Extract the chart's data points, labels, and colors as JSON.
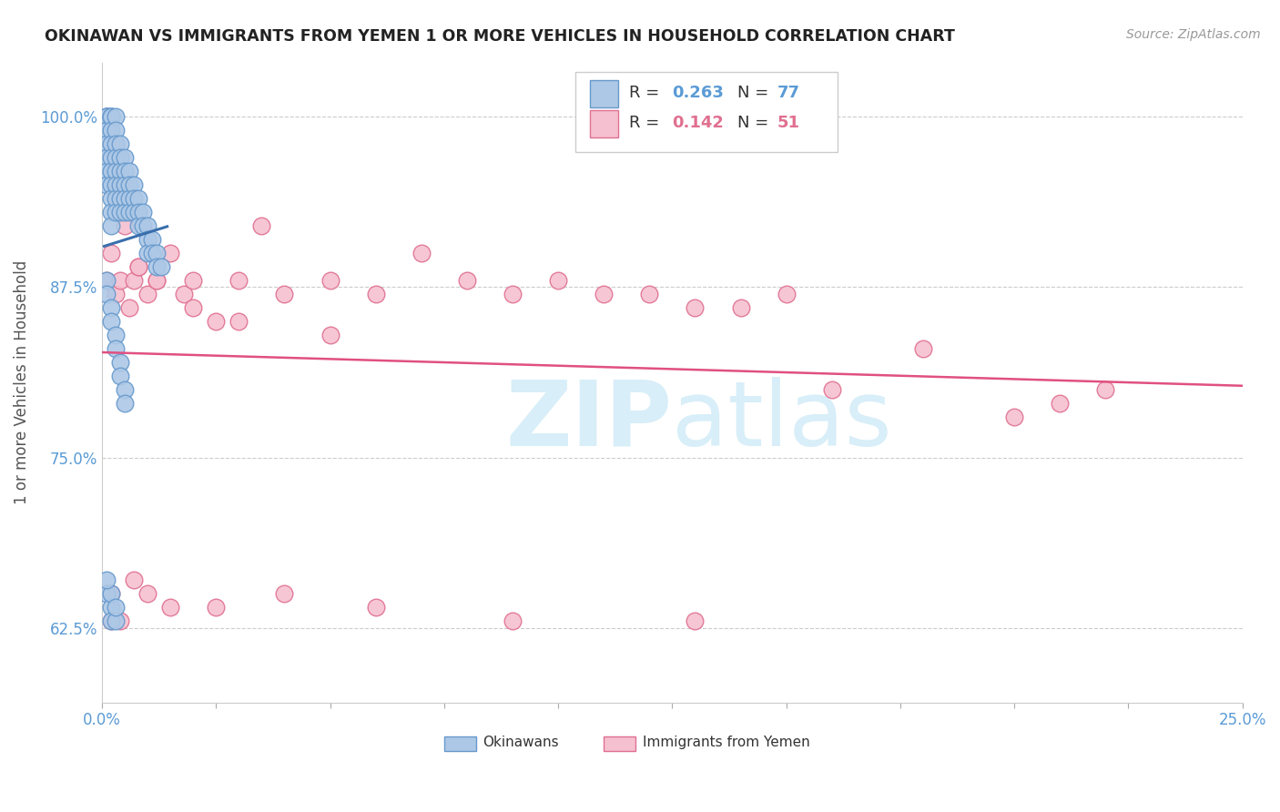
{
  "title": "OKINAWAN VS IMMIGRANTS FROM YEMEN 1 OR MORE VEHICLES IN HOUSEHOLD CORRELATION CHART",
  "ylabel": "1 or more Vehicles in Household",
  "source": "Source: ZipAtlas.com",
  "xlim": [
    0.0,
    0.25
  ],
  "ylim": [
    0.57,
    1.04
  ],
  "yticks": [
    0.625,
    0.75,
    0.875,
    1.0
  ],
  "ytick_labels": [
    "62.5%",
    "75.0%",
    "87.5%",
    "100.0%"
  ],
  "xtick_positions": [
    0.0,
    0.025,
    0.05,
    0.075,
    0.1,
    0.125,
    0.15,
    0.175,
    0.2,
    0.225,
    0.25
  ],
  "xtick_labels": [
    "0.0%",
    "",
    "",
    "",
    "",
    "",
    "",
    "",
    "",
    "",
    "25.0%"
  ],
  "grid_color": "#cccccc",
  "background_color": "#ffffff",
  "okinawan_color": "#adc8e6",
  "okinawan_edge_color": "#6699cc",
  "yemen_color": "#f5c0d0",
  "yemen_edge_color": "#e07090",
  "okinawan_line_color": "#3a6fad",
  "yemen_line_color": "#e05080",
  "tick_color": "#5b9bd5",
  "watermark_color": "#d8eef8",
  "okinawan_R": 0.263,
  "okinawan_N": 77,
  "yemen_R": 0.142,
  "yemen_N": 51,
  "ok_x": [
    0.001,
    0.001,
    0.001,
    0.001,
    0.001,
    0.001,
    0.001,
    0.001,
    0.001,
    0.001,
    0.002,
    0.002,
    0.002,
    0.002,
    0.002,
    0.002,
    0.002,
    0.002,
    0.002,
    0.002,
    0.002,
    0.003,
    0.003,
    0.003,
    0.003,
    0.003,
    0.003,
    0.003,
    0.003,
    0.004,
    0.004,
    0.004,
    0.004,
    0.004,
    0.004,
    0.005,
    0.005,
    0.005,
    0.005,
    0.005,
    0.006,
    0.006,
    0.006,
    0.006,
    0.007,
    0.007,
    0.007,
    0.008,
    0.008,
    0.008,
    0.009,
    0.009,
    0.01,
    0.01,
    0.01,
    0.011,
    0.011,
    0.012,
    0.012,
    0.013,
    0.001,
    0.001,
    0.002,
    0.002,
    0.003,
    0.003,
    0.004,
    0.004,
    0.005,
    0.005,
    0.001,
    0.002,
    0.002,
    0.003,
    0.002,
    0.001,
    0.003
  ],
  "ok_y": [
    1.0,
    1.0,
    1.0,
    1.0,
    0.99,
    0.99,
    0.98,
    0.97,
    0.96,
    0.95,
    1.0,
    1.0,
    1.0,
    0.99,
    0.98,
    0.97,
    0.96,
    0.95,
    0.94,
    0.93,
    0.92,
    1.0,
    0.99,
    0.98,
    0.97,
    0.96,
    0.95,
    0.94,
    0.93,
    0.98,
    0.97,
    0.96,
    0.95,
    0.94,
    0.93,
    0.97,
    0.96,
    0.95,
    0.94,
    0.93,
    0.96,
    0.95,
    0.94,
    0.93,
    0.95,
    0.94,
    0.93,
    0.94,
    0.93,
    0.92,
    0.93,
    0.92,
    0.92,
    0.91,
    0.9,
    0.91,
    0.9,
    0.9,
    0.89,
    0.89,
    0.88,
    0.87,
    0.86,
    0.85,
    0.84,
    0.83,
    0.82,
    0.81,
    0.8,
    0.79,
    0.65,
    0.64,
    0.63,
    0.63,
    0.65,
    0.66,
    0.64
  ],
  "ye_x": [
    0.001,
    0.002,
    0.003,
    0.004,
    0.005,
    0.006,
    0.007,
    0.008,
    0.01,
    0.012,
    0.015,
    0.018,
    0.02,
    0.025,
    0.03,
    0.035,
    0.04,
    0.05,
    0.06,
    0.07,
    0.08,
    0.09,
    0.1,
    0.11,
    0.12,
    0.13,
    0.14,
    0.15,
    0.16,
    0.18,
    0.2,
    0.21,
    0.22,
    0.003,
    0.005,
    0.008,
    0.012,
    0.02,
    0.03,
    0.05,
    0.002,
    0.004,
    0.007,
    0.01,
    0.015,
    0.025,
    0.04,
    0.06,
    0.09,
    0.13,
    0.002
  ],
  "ye_y": [
    0.88,
    0.9,
    0.87,
    0.88,
    0.92,
    0.86,
    0.88,
    0.89,
    0.87,
    0.88,
    0.9,
    0.87,
    0.88,
    0.85,
    0.88,
    0.92,
    0.87,
    0.88,
    0.87,
    0.9,
    0.88,
    0.87,
    0.88,
    0.87,
    0.87,
    0.86,
    0.86,
    0.87,
    0.8,
    0.83,
    0.78,
    0.79,
    0.8,
    0.98,
    0.95,
    0.89,
    0.88,
    0.86,
    0.85,
    0.84,
    0.65,
    0.63,
    0.66,
    0.65,
    0.64,
    0.64,
    0.65,
    0.64,
    0.63,
    0.63,
    0.63
  ]
}
